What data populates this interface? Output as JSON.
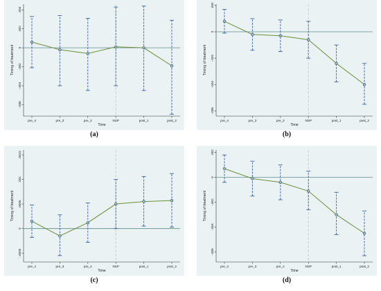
{
  "chart_data": [
    {
      "panel": "a",
      "type": "line",
      "caption": "(a)",
      "xlabel": "Time",
      "ylabel": "Timing of treatment",
      "categories": [
        "pre_4",
        "pre_3",
        "pre_2",
        "NSP",
        "post_1",
        "post_2"
      ],
      "values": [
        0.0006,
        -0.0002,
        -0.0006,
        0.0001,
        0.0,
        -0.0019
      ],
      "ci_low": [
        -0.0021,
        -0.004,
        -0.0045,
        -0.004,
        -0.0045,
        -0.007
      ],
      "ci_high": [
        0.0033,
        0.0034,
        0.0031,
        0.0043,
        0.0044,
        0.0029
      ],
      "yticks": [
        0.004,
        0.002,
        0,
        -0.002,
        -0.004,
        -0.006
      ],
      "ytick_labels": [
        ".004",
        ".002",
        "0",
        "-.002",
        "-.004",
        "-.006"
      ],
      "ylim": [
        -0.0072,
        0.0046
      ],
      "reference_line": 0,
      "event_line": "NSP"
    },
    {
      "panel": "b",
      "type": "line",
      "caption": "(b)",
      "xlabel": "Time",
      "ylabel": "Timing of treatment",
      "categories": [
        "pre_4",
        "pre_3",
        "pre_2",
        "NSP",
        "post_1",
        "post_2"
      ],
      "values": [
        0.0008,
        -0.0002,
        -0.0003,
        -0.0006,
        -0.0024,
        -0.004
      ],
      "ci_low": [
        -0.0001,
        -0.0014,
        -0.0015,
        -0.002,
        -0.0038,
        -0.0055
      ],
      "ci_high": [
        0.0017,
        0.001,
        0.0009,
        0.0008,
        -0.001,
        -0.0024
      ],
      "yticks": [
        0.002,
        0,
        -0.002,
        -0.004,
        -0.006
      ],
      "ytick_labels": [
        ".002",
        "0",
        "-.002",
        "-.004",
        "-.006"
      ],
      "ylim": [
        -0.0064,
        0.0021
      ],
      "reference_line": 0,
      "event_line": "NSP"
    },
    {
      "panel": "c",
      "type": "line",
      "caption": "(c)",
      "xlabel": "Time",
      "ylabel": "Timing of treatment",
      "categories": [
        "pre_4",
        "pre_3",
        "pre_2",
        "NSP",
        "post_1",
        "post_2"
      ],
      "values": [
        0.00015,
        -0.00015,
        0.00012,
        0.0005,
        0.00055,
        0.00057
      ],
      "ci_low": [
        -0.00018,
        -0.00055,
        -0.00028,
        0.0,
        5e-05,
        3e-05
      ],
      "ci_high": [
        0.00048,
        0.00028,
        0.00052,
        0.001,
        0.00106,
        0.00112
      ],
      "yticks": [
        0.0015,
        0.001,
        0.0005,
        0,
        -0.0005
      ],
      "ytick_labels": [
        ".0015",
        ".001",
        ".0005",
        "0",
        "-.0005"
      ],
      "ylim": [
        -0.00068,
        0.0016
      ],
      "reference_line": 0,
      "event_line": "NSP"
    },
    {
      "panel": "d",
      "type": "line",
      "caption": "(d)",
      "xlabel": "Time",
      "ylabel": "Timing of treatment",
      "categories": [
        "pre_4",
        "pre_3",
        "pre_2",
        "NSP",
        "post_1",
        "post_2"
      ],
      "values": [
        0.0007,
        -0.0001,
        -0.0004,
        -0.0011,
        -0.003,
        -0.0045
      ],
      "ci_low": [
        -0.0004,
        -0.0015,
        -0.0018,
        -0.0026,
        -0.0046,
        -0.0063
      ],
      "ci_high": [
        0.0018,
        0.0013,
        0.001,
        0.0005,
        -0.0012,
        -0.0027
      ],
      "yticks": [
        0.002,
        0,
        -0.002,
        -0.004,
        -0.006
      ],
      "ytick_labels": [
        ".002",
        "0",
        "-.002",
        "-.004",
        "-.006"
      ],
      "ylim": [
        -0.0068,
        0.0022
      ],
      "reference_line": 0,
      "event_line": "NSP"
    }
  ],
  "colors": {
    "background": "#eaf2f3",
    "series_line": "#6b8e3a",
    "ci_bar": "#3a5fa8",
    "point_edge": "#2b4f80",
    "zero_line": "#5e8a8a",
    "event_line": "#c8c8c8"
  }
}
